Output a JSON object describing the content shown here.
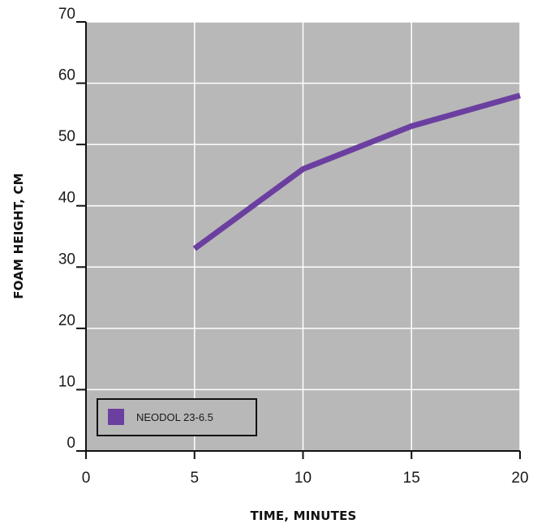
{
  "chart_data": {
    "type": "line",
    "title": "",
    "xlabel": "TIME, MINUTES",
    "ylabel": "FOAM HEIGHT, CM",
    "xlim": [
      0,
      20
    ],
    "ylim": [
      0,
      70
    ],
    "x_ticks": [
      0,
      5,
      10,
      15,
      20
    ],
    "y_ticks": [
      0,
      10,
      20,
      30,
      40,
      50,
      60,
      70
    ],
    "x_tick_labels": [
      "0",
      "5",
      "10",
      "15",
      "20"
    ],
    "y_tick_labels": [
      "0",
      "10",
      "20",
      "30",
      "40",
      "50",
      "60",
      "70"
    ],
    "grid": true,
    "legend_position": "bottom-left",
    "background_color": "#b8b8b8",
    "grid_color": "#ffffff",
    "series": [
      {
        "name": "NEODOL 23-6.5",
        "color": "#6b3fa0",
        "x": [
          5,
          10,
          15,
          20
        ],
        "y": [
          33,
          46,
          53,
          58
        ]
      }
    ]
  }
}
